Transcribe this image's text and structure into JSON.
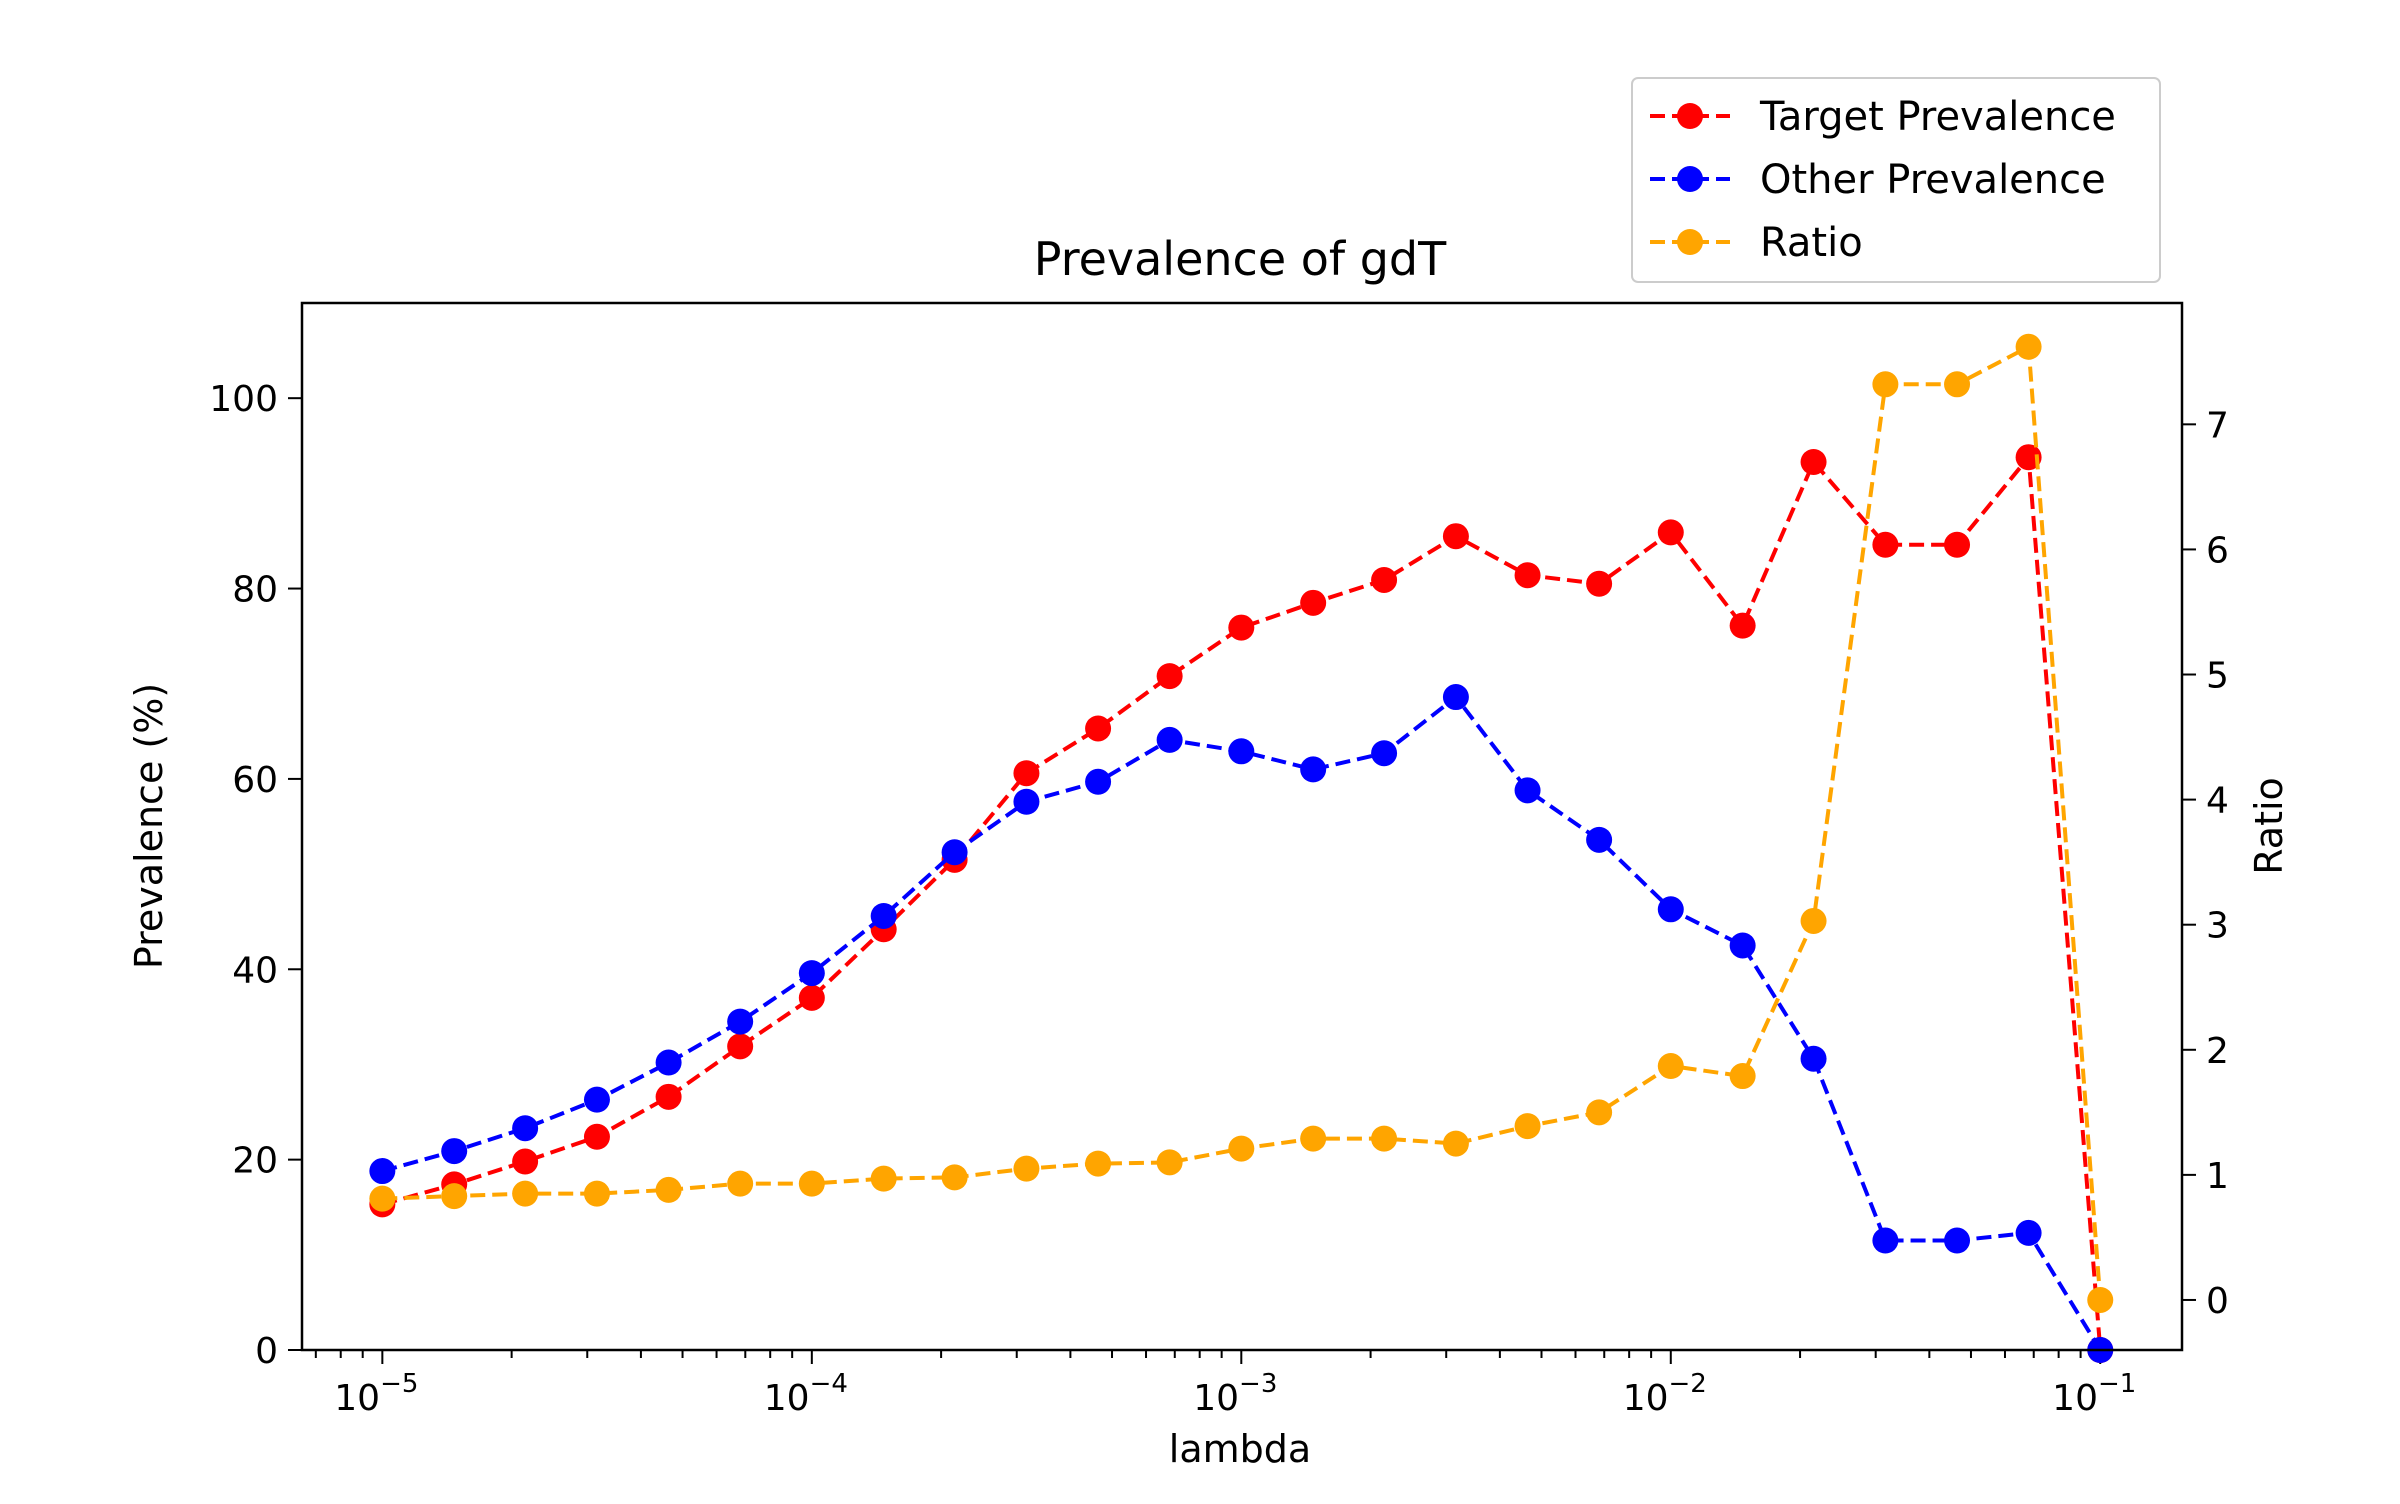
{
  "chart_data": {
    "type": "line",
    "title": "Prevalence of gdT",
    "xlabel": "lambda",
    "ylabel": "Prevalence (%)",
    "y2label": "Ratio",
    "xscale": "log",
    "xlim": [
      6.5e-06,
      0.155
    ],
    "ylim": [
      0,
      110
    ],
    "y2lim": [
      -0.4,
      7.97
    ],
    "x_ticks": [
      1e-05,
      0.0001,
      0.001,
      0.01,
      0.1
    ],
    "x_tick_labels": [
      "10",
      "10",
      "10",
      "10",
      "10"
    ],
    "x_tick_exponents": [
      "−5",
      "−4",
      "−3",
      "−2",
      "−1"
    ],
    "y_ticks": [
      0,
      20,
      40,
      60,
      80,
      100
    ],
    "y_tick_labels": [
      "0",
      "20",
      "40",
      "60",
      "80",
      "100"
    ],
    "y2_ticks": [
      0,
      1,
      2,
      3,
      4,
      5,
      6,
      7
    ],
    "y2_tick_labels": [
      "0",
      "1",
      "2",
      "3",
      "4",
      "5",
      "6",
      "7"
    ],
    "grid": false,
    "legend_position": "top-right, above plot",
    "x": [
      1e-05,
      1.47e-05,
      2.15e-05,
      3.16e-05,
      4.64e-05,
      6.81e-05,
      0.0001,
      0.000147,
      0.000215,
      0.000316,
      0.000464,
      0.000681,
      0.001,
      0.00147,
      0.00215,
      0.00316,
      0.00464,
      0.00681,
      0.01,
      0.0147,
      0.0215,
      0.0316,
      0.0464,
      0.0681,
      0.1
    ],
    "series": [
      {
        "name": "Target Prevalence",
        "color": "#ff0000",
        "axis": "left",
        "values": [
          15.3,
          17.4,
          19.8,
          22.4,
          26.6,
          31.9,
          37.0,
          44.2,
          51.5,
          60.6,
          65.3,
          70.8,
          75.9,
          78.5,
          80.9,
          85.5,
          81.4,
          80.5,
          85.9,
          76.1,
          93.3,
          84.6,
          84.6,
          93.8,
          0.0
        ]
      },
      {
        "name": "Other Prevalence",
        "color": "#0000ff",
        "axis": "left",
        "values": [
          18.8,
          20.9,
          23.3,
          26.3,
          30.2,
          34.5,
          39.6,
          45.6,
          52.3,
          57.6,
          59.7,
          64.1,
          62.9,
          61.0,
          62.7,
          68.6,
          58.8,
          53.6,
          46.3,
          42.5,
          30.6,
          11.5,
          11.5,
          12.3,
          0.0
        ]
      },
      {
        "name": "Ratio",
        "color": "#ffa500",
        "axis": "right",
        "values": [
          0.81,
          0.83,
          0.85,
          0.85,
          0.88,
          0.93,
          0.93,
          0.97,
          0.98,
          1.05,
          1.09,
          1.1,
          1.21,
          1.29,
          1.29,
          1.25,
          1.39,
          1.5,
          1.87,
          1.79,
          3.03,
          7.32,
          7.32,
          7.62,
          0.0
        ]
      }
    ]
  }
}
